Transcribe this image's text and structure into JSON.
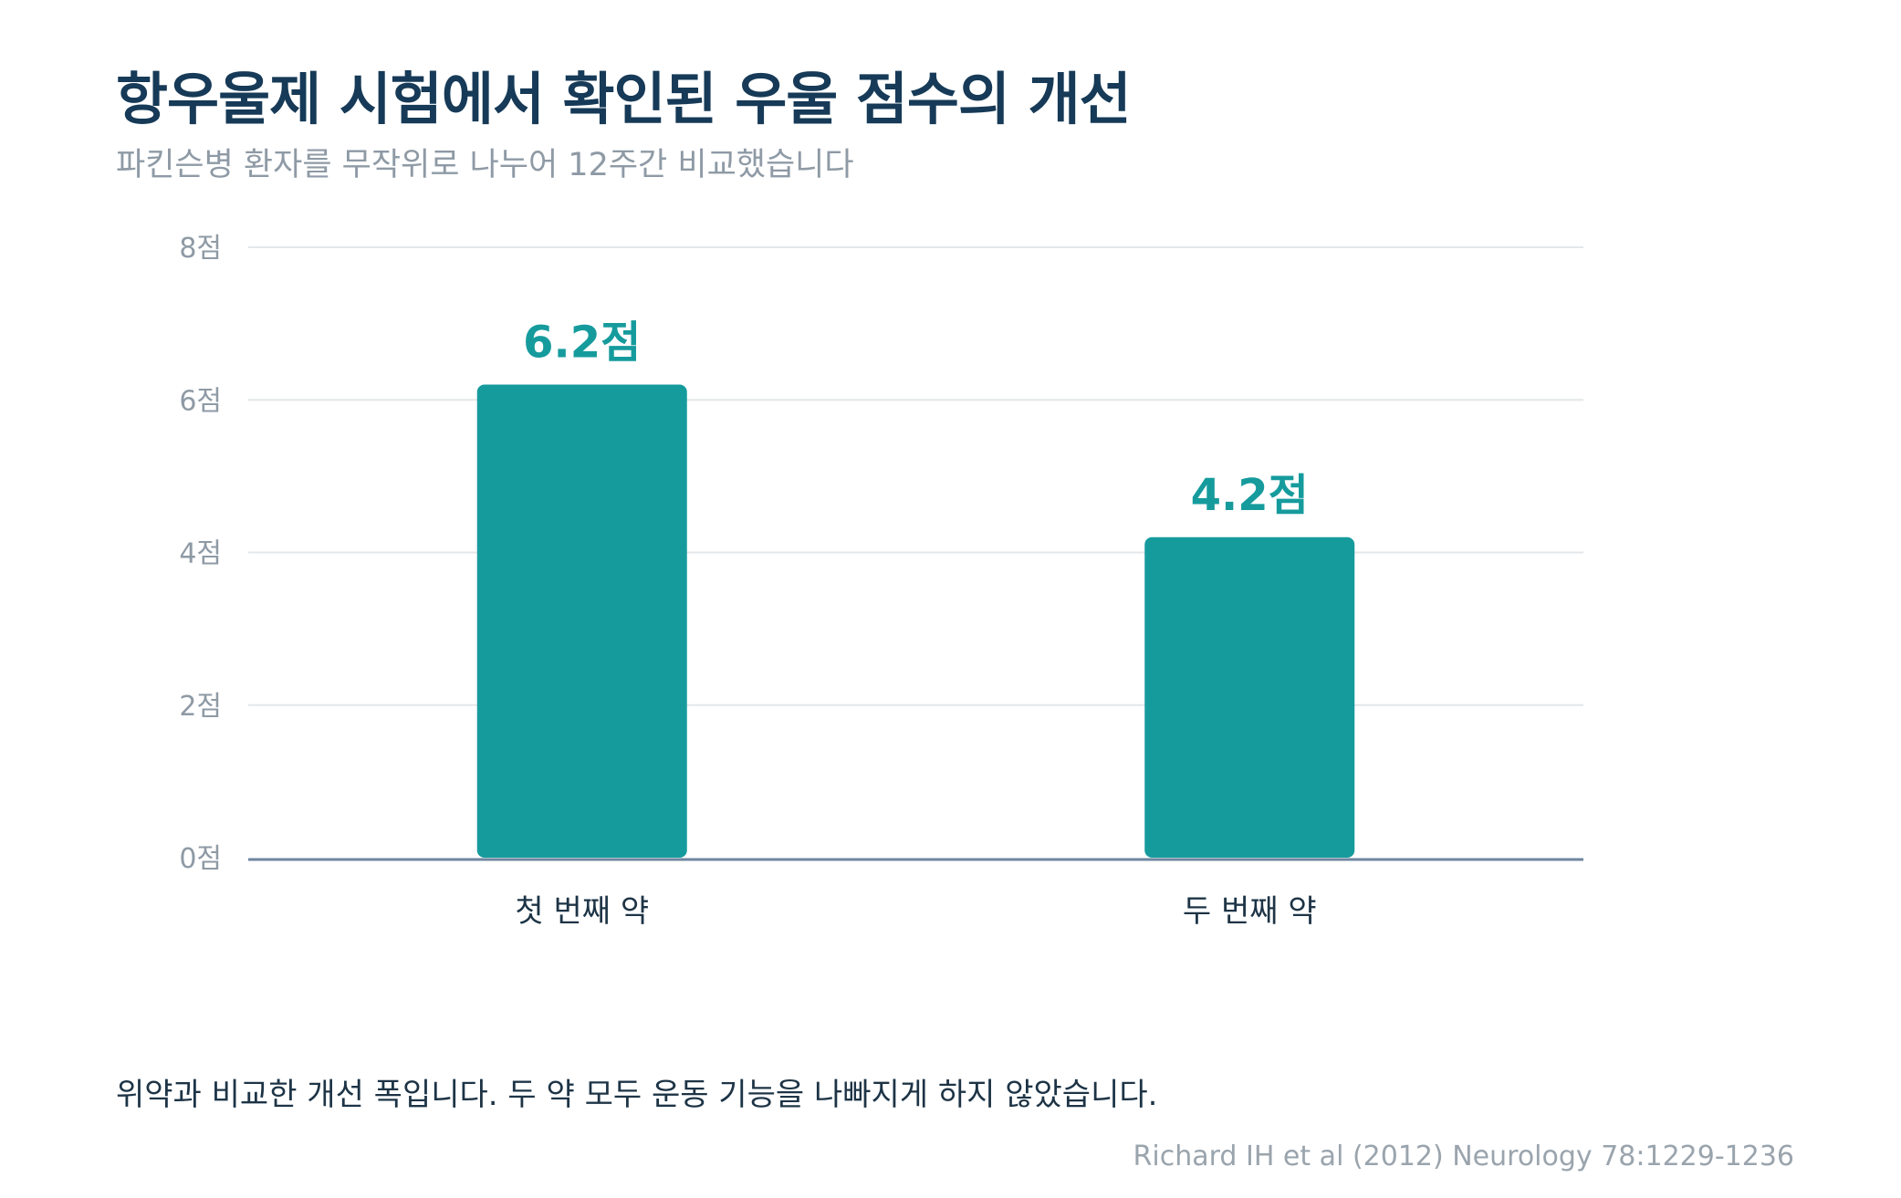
{
  "header": {
    "title": "항우울제 시험에서 확인된 우울 점수의 개선",
    "subtitle": "파킨슨병 환자를 무작위로 나누어 12주간 비교했습니다"
  },
  "chart_data": {
    "type": "bar",
    "categories": [
      "첫 번째 약",
      "두 번째 약"
    ],
    "values": [
      6.2,
      4.2
    ],
    "value_labels": [
      "6.2점",
      "4.2점"
    ],
    "ylim": [
      0,
      8
    ],
    "yticks": [
      0,
      2,
      4,
      6,
      8
    ],
    "ytick_labels": [
      "0점",
      "2점",
      "4점",
      "6점",
      "8점"
    ],
    "grid": true,
    "legend": "none",
    "colors": {
      "bar": "#169b9d",
      "value_label": "#169b9d",
      "grid": "#e3e7ea",
      "baseline": "#6f86a0",
      "tick_label": "#8e9aa5",
      "category_label": "#1d3446"
    }
  },
  "footer": {
    "note": "위약과 비교한 개선 폭입니다. 두 약 모두 운동 기능을 나빠지게 하지 않았습니다.",
    "source": "Richard IH et al (2012) Neurology 78:1229-1236"
  }
}
